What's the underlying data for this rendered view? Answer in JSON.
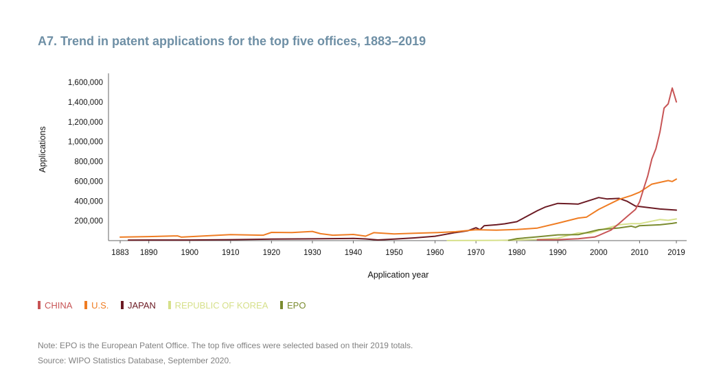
{
  "title": "A7. Trend in patent applications for the top five offices, 1883–2019",
  "chart_data": {
    "type": "line",
    "title": "A7. Trend in patent applications for the top five offices, 1883–2019",
    "xlabel": "Application year",
    "ylabel": "Applications",
    "xlim": [
      1883,
      2019
    ],
    "ylim": [
      0,
      1700000
    ],
    "x_ticks": [
      1883,
      1890,
      1900,
      1910,
      1920,
      1930,
      1940,
      1950,
      1960,
      1970,
      1980,
      1990,
      2000,
      2010,
      2019
    ],
    "y_ticks": [
      200000,
      400000,
      600000,
      800000,
      1000000,
      1200000,
      1400000,
      1600000
    ],
    "y_tick_labels": [
      "200,000",
      "400,000",
      "600,000",
      "800,000",
      "1,000,000",
      "1,200,000",
      "1,400,000",
      "1,600,000"
    ],
    "series": [
      {
        "name": "JAPAN",
        "color": "#6b1a23",
        "x": [
          1885,
          1890,
          1900,
          1910,
          1920,
          1930,
          1940,
          1943,
          1946,
          1950,
          1955,
          1960,
          1965,
          1968,
          1970,
          1971,
          1972,
          1975,
          1977,
          1980,
          1985,
          1987,
          1990,
          1993,
          1995,
          2000,
          2002,
          2005,
          2007,
          2009,
          2010,
          2015,
          2019
        ],
        "y": [
          5000,
          6000,
          6000,
          10000,
          15000,
          18000,
          22000,
          17000,
          7000,
          15000,
          28000,
          44000,
          82000,
          100000,
          130000,
          110000,
          150000,
          160000,
          170000,
          191000,
          302000,
          340000,
          376000,
          372000,
          369000,
          435000,
          421000,
          427000,
          397000,
          349000,
          345000,
          319000,
          308000
        ]
      },
      {
        "name": "U.S.",
        "color": "#ef7c22",
        "x": [
          1883,
          1890,
          1897,
          1898,
          1900,
          1910,
          1918,
          1920,
          1925,
          1930,
          1932,
          1935,
          1940,
          1943,
          1945,
          1950,
          1955,
          1960,
          1965,
          1970,
          1975,
          1980,
          1982,
          1985,
          1990,
          1995,
          1997,
          2000,
          2005,
          2008,
          2010,
          2013,
          2015,
          2017,
          2018,
          2019
        ],
        "y": [
          35000,
          41000,
          48000,
          35000,
          40000,
          60000,
          55000,
          83000,
          82000,
          93000,
          70000,
          55000,
          62000,
          45000,
          80000,
          68000,
          75000,
          80000,
          90000,
          110000,
          105000,
          112000,
          118000,
          127000,
          176000,
          228000,
          237000,
          315000,
          417000,
          456000,
          490000,
          571000,
          589000,
          607000,
          597000,
          621000
        ]
      },
      {
        "name": "REPUBLIC OF KOREA",
        "color": "#d6e08a",
        "x": [
          1963,
          1970,
          1975,
          1980,
          1985,
          1990,
          1995,
          1998,
          2000,
          2005,
          2008,
          2010,
          2015,
          2017,
          2019
        ],
        "y": [
          700,
          2000,
          3000,
          6000,
          11000,
          25000,
          78000,
          76000,
          102000,
          160000,
          171000,
          171000,
          213000,
          205000,
          219000
        ]
      },
      {
        "name": "EPO",
        "color": "#7a8b2e",
        "x": [
          1978,
          1980,
          1985,
          1990,
          1995,
          2000,
          2005,
          2008,
          2009,
          2010,
          2015,
          2018,
          2019
        ],
        "y": [
          3000,
          20000,
          38000,
          58000,
          60000,
          110000,
          128000,
          146000,
          134000,
          151000,
          160000,
          174000,
          181000
        ]
      },
      {
        "name": "CHINA",
        "color": "#c75455",
        "x": [
          1985,
          1990,
          1995,
          1999,
          2000,
          2003,
          2005,
          2007,
          2009,
          2010,
          2011,
          2012,
          2013,
          2014,
          2015,
          2016,
          2017,
          2018,
          2019
        ],
        "y": [
          8000,
          10000,
          19000,
          36000,
          52000,
          106000,
          173000,
          245000,
          315000,
          391000,
          526000,
          653000,
          825000,
          928000,
          1101000,
          1339000,
          1382000,
          1542000,
          1401000
        ]
      }
    ],
    "legend": [
      "CHINA",
      "U.S.",
      "JAPAN",
      "REPUBLIC OF KOREA",
      "EPO"
    ],
    "legend_placement": "bottom-left"
  },
  "legend": [
    {
      "label": "CHINA",
      "color": "#c75455"
    },
    {
      "label": "U.S.",
      "color": "#ef7c22"
    },
    {
      "label": "JAPAN",
      "color": "#6b1a23"
    },
    {
      "label": "REPUBLIC OF KOREA",
      "color": "#d6e08a"
    },
    {
      "label": "EPO",
      "color": "#7a8b2e"
    }
  ],
  "notes": {
    "note": "Note: EPO is the European Patent Office. The top five offices were selected based on their 2019 totals.",
    "source": "Source: WIPO Statistics Database, September 2020."
  }
}
